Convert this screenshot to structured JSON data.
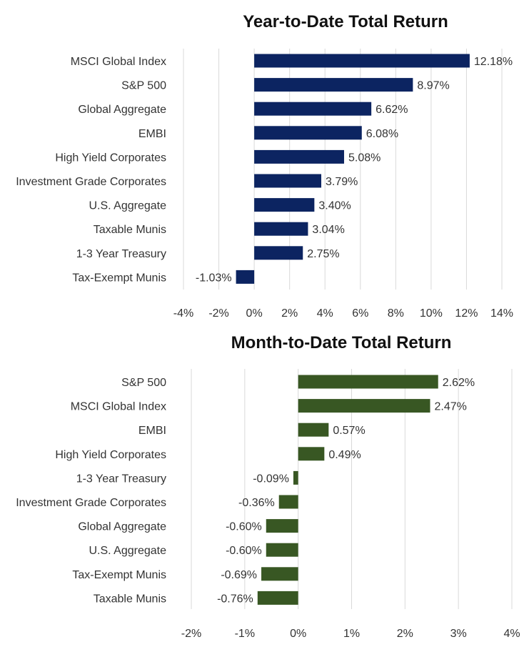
{
  "chart_data": [
    {
      "type": "bar",
      "orientation": "horizontal",
      "title": "Year-to-Date Total Return",
      "categories": [
        "MSCI Global Index",
        "S&P 500",
        "Global Aggregate",
        "EMBI",
        "High Yield Corporates",
        "Investment Grade Corporates",
        "U.S. Aggregate",
        "Taxable Munis",
        "1-3 Year Treasury",
        "Tax-Exempt Munis"
      ],
      "values": [
        12.18,
        8.97,
        6.62,
        6.08,
        5.08,
        3.79,
        3.4,
        3.04,
        2.75,
        -1.03
      ],
      "value_labels": [
        "12.18%",
        "8.97%",
        "6.62%",
        "6.08%",
        "5.08%",
        "3.79%",
        "3.40%",
        "3.04%",
        "2.75%",
        "-1.03%"
      ],
      "xlim": [
        -4,
        14
      ],
      "xticks": [
        -4,
        -2,
        0,
        2,
        4,
        6,
        8,
        10,
        12,
        14
      ],
      "xtick_labels": [
        "-4%",
        "-2%",
        "0%",
        "2%",
        "4%",
        "6%",
        "8%",
        "10%",
        "12%",
        "14%"
      ],
      "xlabel": "",
      "ylabel": "",
      "grid": "vertical",
      "legend": "none",
      "color": "#0c2461"
    },
    {
      "type": "bar",
      "orientation": "horizontal",
      "title": "Month-to-Date Total Return",
      "categories": [
        "S&P 500",
        "MSCI Global Index",
        "EMBI",
        "High Yield Corporates",
        "1-3 Year Treasury",
        "Investment Grade Corporates",
        "Global Aggregate",
        "U.S. Aggregate",
        "Tax-Exempt Munis",
        "Taxable Munis"
      ],
      "values": [
        2.62,
        2.47,
        0.57,
        0.49,
        -0.09,
        -0.36,
        -0.6,
        -0.6,
        -0.69,
        -0.76
      ],
      "value_labels": [
        "2.62%",
        "2.47%",
        "0.57%",
        "0.49%",
        "-0.09%",
        "-0.36%",
        "-0.60%",
        "-0.60%",
        "-0.69%",
        "-0.76%"
      ],
      "xlim": [
        -2,
        4
      ],
      "xticks": [
        -2,
        -1,
        0,
        1,
        2,
        3,
        4
      ],
      "xtick_labels": [
        "-2%",
        "-1%",
        "0%",
        "1%",
        "2%",
        "3%",
        "4%"
      ],
      "xlabel": "",
      "ylabel": "",
      "grid": "vertical",
      "legend": "none",
      "color": "#385723"
    }
  ]
}
